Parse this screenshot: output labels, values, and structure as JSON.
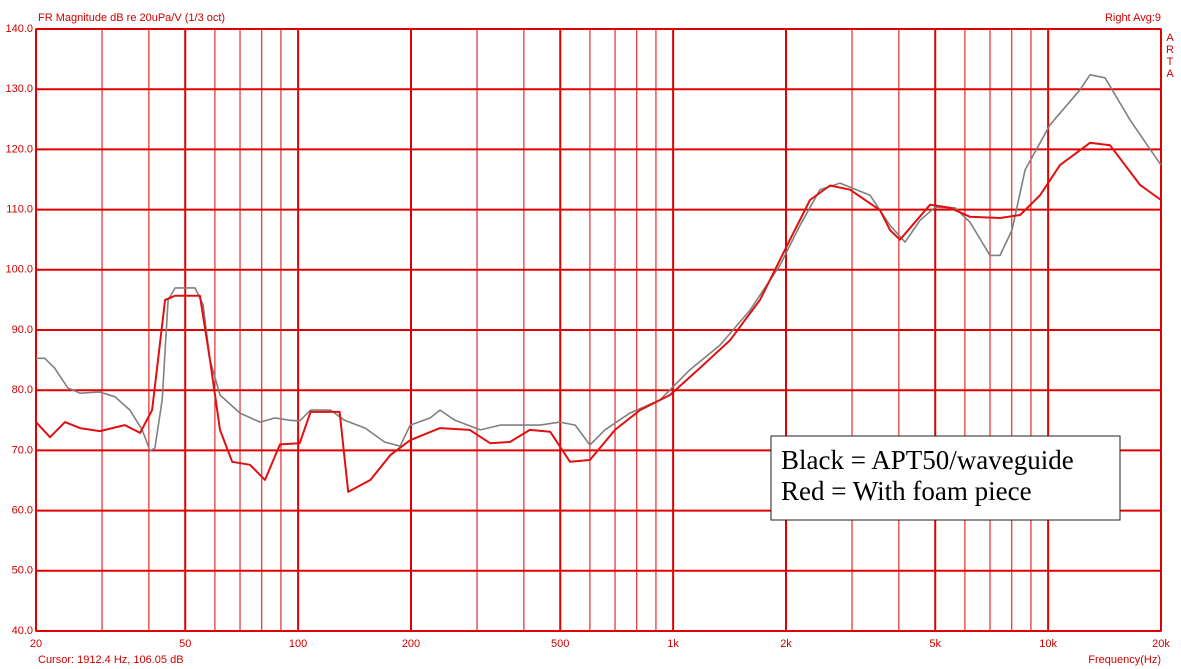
{
  "chart_data": {
    "type": "line",
    "title": "FR Magnitude dB re 20uPa/V (1/3 oct)",
    "top_right": "Right  Avg:9",
    "side_label": "ARTA",
    "cursor": "Cursor:  1912.4 Hz, 106.05 dB",
    "x_label": "Frequency(Hz)",
    "log_x": true,
    "grid": true,
    "grid_color": "#e00000",
    "legend_position": "lower right",
    "xlim": [
      20,
      20000
    ],
    "ylim": [
      40,
      140
    ],
    "xticks": [
      20,
      50,
      100,
      200,
      500,
      {
        "value": 1000,
        "label": "1k"
      },
      {
        "value": 2000,
        "label": "2k"
      },
      {
        "value": 5000,
        "label": "5k"
      },
      {
        "value": 10000,
        "label": "10k"
      },
      {
        "value": 20000,
        "label": "20k"
      }
    ],
    "xminor": [
      30,
      40,
      60,
      70,
      80,
      90,
      300,
      400,
      600,
      700,
      800,
      900,
      3000,
      4000,
      6000,
      7000,
      8000,
      9000
    ],
    "yticks": [
      {
        "value": 40,
        "label": "40.0"
      },
      {
        "value": 50,
        "label": "50.0"
      },
      {
        "value": 60,
        "label": "60.0"
      },
      {
        "value": 70,
        "label": "70.0"
      },
      {
        "value": 80,
        "label": "80.0"
      },
      {
        "value": 90,
        "label": "90.0"
      },
      {
        "value": 100,
        "label": "100.0"
      },
      {
        "value": 110,
        "label": "110.0"
      },
      {
        "value": 120,
        "label": "120.0"
      },
      {
        "value": 130,
        "label": "130.0"
      },
      {
        "value": 140,
        "label": "140.0"
      }
    ],
    "series": [
      {
        "name": "Black = APT50/waveguide",
        "color": "#808080",
        "x": [
          20,
          21.1,
          22.4,
          24.3,
          26.2,
          29.6,
          32.5,
          35.6,
          38.4,
          40.3,
          41.5,
          43.4,
          45,
          47,
          53.1,
          55.8,
          58.2,
          61.9,
          70,
          79.2,
          86.8,
          95.2,
          101,
          108,
          122,
          133,
          151,
          170,
          187,
          199,
          225,
          239,
          262,
          306,
          346,
          391,
          442,
          499,
          548,
          600,
          658,
          767,
          923,
          1109,
          1334,
          1604,
          1929,
          2180,
          2465,
          2786,
          3350,
          3787,
          4152,
          4553,
          4993,
          5644,
          6190,
          6998,
          7443,
          8011,
          8681,
          10120,
          12165,
          12935,
          14185,
          16530,
          20000
        ],
        "values": [
          85.3,
          85.3,
          83.7,
          80.4,
          79.5,
          79.7,
          78.9,
          76.7,
          73.4,
          69.9,
          70.4,
          78.4,
          95,
          97,
          97,
          94.2,
          85,
          79.2,
          76.2,
          74.7,
          75.4,
          75,
          74.9,
          76.7,
          76.7,
          75,
          73.7,
          71.4,
          70.7,
          74.2,
          75.4,
          76.7,
          75,
          73.4,
          74.2,
          74.2,
          74.2,
          74.7,
          74.2,
          70.9,
          73.4,
          76.2,
          78.4,
          83.4,
          87.5,
          93.3,
          100.8,
          107.4,
          113.3,
          114.4,
          112.4,
          107.4,
          104.6,
          108.2,
          110.4,
          110.3,
          107.9,
          102.4,
          102.4,
          106.6,
          116.6,
          124.1,
          129.9,
          132.4,
          131.9,
          124.9,
          117.4
        ]
      },
      {
        "name": "Red = With foam piece",
        "color": "#e01010",
        "x": [
          20,
          21.8,
          23.9,
          26.2,
          29.6,
          34.5,
          37.9,
          40.8,
          44.2,
          47,
          54.7,
          58.2,
          61.9,
          66.7,
          74.4,
          81.6,
          89.5,
          101,
          108,
          129,
          136,
          156,
          176,
          199,
          239,
          287,
          325,
          367,
          415,
          470,
          531,
          600,
          700,
          816,
          981,
          1180,
          1419,
          1705,
          2050,
          2318,
          2621,
          2963,
          3563,
          3787,
          4027,
          4416,
          4842,
          5474,
          6190,
          7443,
          8418,
          9517,
          10760,
          12935,
          14620,
          17580,
          20000
        ],
        "values": [
          74.7,
          72.2,
          74.7,
          73.7,
          73.2,
          74.2,
          72.9,
          76.7,
          95,
          95.7,
          95.7,
          85,
          73.4,
          68.1,
          67.6,
          65.1,
          71,
          71.2,
          76.4,
          76.4,
          63.1,
          65.1,
          69.2,
          71.7,
          73.7,
          73.4,
          71.2,
          71.4,
          73.4,
          73.1,
          68.1,
          68.4,
          73.4,
          76.7,
          79.2,
          83.7,
          88.3,
          95,
          105,
          111.6,
          114,
          113.3,
          109.9,
          106.6,
          105,
          107.9,
          110.8,
          110.3,
          108.8,
          108.6,
          109.1,
          112.4,
          117.4,
          121.1,
          120.7,
          114.1,
          111.6
        ]
      }
    ]
  }
}
